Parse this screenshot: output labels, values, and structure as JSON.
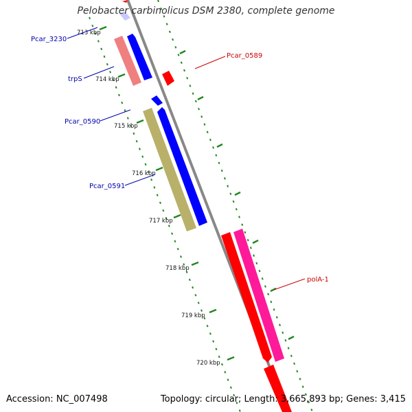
{
  "title": "Pelobacter carbinolicus DSM 2380, complete genome",
  "footer": {
    "accession": "Accession: NC_007498",
    "summary": "Topology: circular; Length: 3,665,893 bp; Genes: 3,415"
  },
  "scale_labels": [
    "713 kbp",
    "714 kbp",
    "715 kbp",
    "716 kbp",
    "717 kbp",
    "718 kbp",
    "719 kbp",
    "720 kbp"
  ],
  "gene_labels": [
    {
      "text": "Pcar_3230",
      "color": "#0000aa"
    },
    {
      "text": "trpS",
      "color": "#0000aa"
    },
    {
      "text": "Pcar_0590",
      "color": "#0000aa"
    },
    {
      "text": "Pcar_0591",
      "color": "#0000aa"
    },
    {
      "text": "Pcar_0589",
      "color": "#cc0000"
    },
    {
      "text": "polA-1",
      "color": "#cc0000"
    }
  ],
  "colors": {
    "backbone": "#888888",
    "scale_ticks": "#228822",
    "blue_gene": "#0000ff",
    "red_gene": "#ff0000",
    "pink_gene": "#ff1a99",
    "salmon_gene": "#f08080",
    "olive_gene": "#b9b16a",
    "lavender_gene": "#c8c8ff"
  }
}
